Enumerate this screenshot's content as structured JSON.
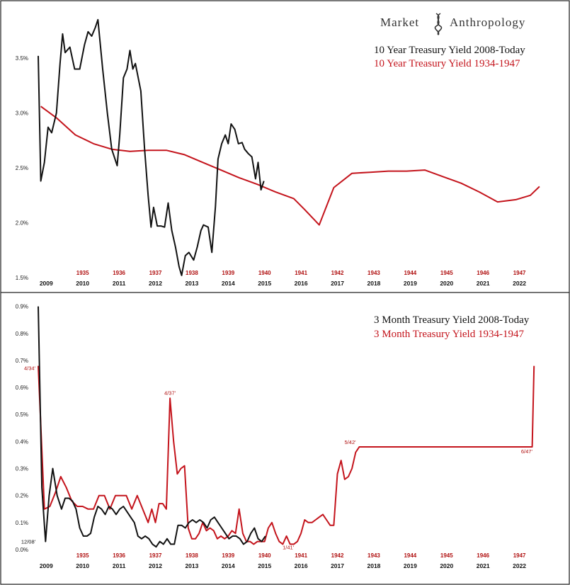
{
  "brand": {
    "word1": "Market",
    "word2": "Anthropology"
  },
  "colors": {
    "black": "#111111",
    "red": "#c4141c",
    "red_label": "#b01010"
  },
  "chart_data": [
    {
      "type": "line",
      "title": "10 Year Treasury Yield",
      "xlabel": "",
      "ylabel": "",
      "ylim": [
        1.5,
        3.9
      ],
      "xlim": [
        2008.8,
        2023.0
      ],
      "yticks": [
        {
          "value": 1.5,
          "label": "1.5%"
        },
        {
          "value": 2.0,
          "label": "2.0%"
        },
        {
          "value": 2.5,
          "label": "2.5%"
        },
        {
          "value": 3.0,
          "label": "3.0%"
        },
        {
          "value": 3.5,
          "label": "3.5%"
        }
      ],
      "x_ticks_black": [
        "2009",
        "2010",
        "2011",
        "2012",
        "2013",
        "2014",
        "2015",
        "2016",
        "2017",
        "2018",
        "2019",
        "2020",
        "2021",
        "2022"
      ],
      "x_ticks_red": [
        "1935",
        "1936",
        "1937",
        "1938",
        "1939",
        "1940",
        "1941",
        "1942",
        "1943",
        "1944",
        "1945",
        "1946",
        "1947"
      ],
      "series": [
        {
          "name": "10 Year Treasury Yield 2008-Today",
          "color": "#111111",
          "x": [
            2008.78,
            2008.85,
            2008.95,
            2009.05,
            2009.15,
            2009.28,
            2009.38,
            2009.45,
            2009.52,
            2009.65,
            2009.78,
            2009.92,
            2010.05,
            2010.15,
            2010.25,
            2010.35,
            2010.42,
            2010.55,
            2010.68,
            2010.8,
            2010.95,
            2011.02,
            2011.12,
            2011.22,
            2011.3,
            2011.38,
            2011.45,
            2011.6,
            2011.7,
            2011.8,
            2011.88,
            2011.95,
            2012.05,
            2012.15,
            2012.25,
            2012.35,
            2012.45,
            2012.55,
            2012.65,
            2012.72,
            2012.82,
            2012.92,
            2013.05,
            2013.15,
            2013.25,
            2013.32,
            2013.45,
            2013.55,
            2013.65,
            2013.72,
            2013.82,
            2013.92,
            2014.0,
            2014.08,
            2014.18,
            2014.28,
            2014.38,
            2014.45,
            2014.55,
            2014.65,
            2014.75,
            2014.82,
            2014.9,
            2014.98
          ],
          "y": [
            3.52,
            2.38,
            2.55,
            2.87,
            2.82,
            3.0,
            3.45,
            3.72,
            3.55,
            3.6,
            3.4,
            3.4,
            3.62,
            3.74,
            3.7,
            3.78,
            3.85,
            3.4,
            3.0,
            2.67,
            2.52,
            2.8,
            3.32,
            3.4,
            3.57,
            3.4,
            3.45,
            3.2,
            2.68,
            2.25,
            1.96,
            2.14,
            1.97,
            1.97,
            1.96,
            2.18,
            1.93,
            1.78,
            1.6,
            1.52,
            1.7,
            1.73,
            1.66,
            1.78,
            1.93,
            1.98,
            1.96,
            1.73,
            2.15,
            2.58,
            2.72,
            2.8,
            2.72,
            2.9,
            2.85,
            2.72,
            2.73,
            2.67,
            2.63,
            2.6,
            2.4,
            2.55,
            2.3,
            2.38
          ]
        },
        {
          "name": "10 Year Treasury Yield 1934-1947",
          "color": "#c4141c",
          "x": [
            2008.85,
            2009.3,
            2009.8,
            2010.3,
            2010.8,
            2011.3,
            2011.8,
            2012.3,
            2012.8,
            2013.3,
            2013.8,
            2014.3,
            2014.8,
            2015.3,
            2015.8,
            2016.1,
            2016.5,
            2016.9,
            2017.4,
            2017.9,
            2018.4,
            2018.9,
            2019.4,
            2019.9,
            2020.4,
            2020.9,
            2021.4,
            2021.9,
            2022.3,
            2022.55
          ],
          "y": [
            3.06,
            2.95,
            2.8,
            2.72,
            2.67,
            2.65,
            2.66,
            2.66,
            2.62,
            2.55,
            2.48,
            2.41,
            2.35,
            2.28,
            2.22,
            2.12,
            1.98,
            2.32,
            2.45,
            2.46,
            2.47,
            2.47,
            2.48,
            2.42,
            2.36,
            2.28,
            2.19,
            2.21,
            2.25,
            2.33
          ]
        }
      ],
      "legend": [
        {
          "label": "10 Year Treasury Yield 2008-Today",
          "color": "#111111"
        },
        {
          "label": "10 Year Treasury Yield 1934-1947",
          "color": "#c4141c"
        }
      ]
    },
    {
      "type": "line",
      "title": "3 Month Treasury Yield",
      "xlabel": "",
      "ylabel": "",
      "ylim": [
        0.0,
        0.92
      ],
      "xlim": [
        2008.8,
        2023.0
      ],
      "yticks": [
        {
          "value": 0.0,
          "label": "0.0%"
        },
        {
          "value": 0.1,
          "label": "0.1%"
        },
        {
          "value": 0.2,
          "label": "0.2%"
        },
        {
          "value": 0.3,
          "label": "0.3%"
        },
        {
          "value": 0.4,
          "label": "0.4%"
        },
        {
          "value": 0.5,
          "label": "0.5%"
        },
        {
          "value": 0.6,
          "label": "0.6%"
        },
        {
          "value": 0.7,
          "label": "0.7%"
        },
        {
          "value": 0.8,
          "label": "0.8%"
        },
        {
          "value": 0.9,
          "label": "0.9%"
        }
      ],
      "x_ticks_black": [
        "2009",
        "2010",
        "2011",
        "2012",
        "2013",
        "2014",
        "2015",
        "2016",
        "2017",
        "2018",
        "2019",
        "2020",
        "2021",
        "2022"
      ],
      "x_ticks_red": [
        "1935",
        "1936",
        "1937",
        "1938",
        "1939",
        "1940",
        "1941",
        "1942",
        "1943",
        "1944",
        "1945",
        "1946",
        "1947"
      ],
      "series": [
        {
          "name": "3 Month Treasury Yield 2008-Today",
          "color": "#111111",
          "x": [
            2008.78,
            2008.88,
            2008.98,
            2009.08,
            2009.18,
            2009.3,
            2009.42,
            2009.52,
            2009.62,
            2009.72,
            2009.82,
            2009.92,
            2010.02,
            2010.12,
            2010.22,
            2010.32,
            2010.42,
            2010.52,
            2010.62,
            2010.72,
            2010.82,
            2010.92,
            2011.02,
            2011.12,
            2011.22,
            2011.32,
            2011.42,
            2011.52,
            2011.62,
            2011.72,
            2011.82,
            2011.92,
            2012.02,
            2012.12,
            2012.22,
            2012.32,
            2012.42,
            2012.52,
            2012.62,
            2012.72,
            2012.82,
            2012.92,
            2013.02,
            2013.12,
            2013.22,
            2013.32,
            2013.42,
            2013.52,
            2013.62,
            2013.72,
            2013.82,
            2013.92,
            2014.02,
            2014.12,
            2014.22,
            2014.32,
            2014.42,
            2014.52,
            2014.62,
            2014.72,
            2014.82,
            2014.92,
            2015.02
          ],
          "y": [
            0.9,
            0.23,
            0.03,
            0.2,
            0.3,
            0.2,
            0.15,
            0.19,
            0.19,
            0.18,
            0.15,
            0.08,
            0.05,
            0.05,
            0.06,
            0.12,
            0.16,
            0.15,
            0.13,
            0.16,
            0.15,
            0.13,
            0.15,
            0.16,
            0.14,
            0.12,
            0.1,
            0.05,
            0.04,
            0.05,
            0.04,
            0.02,
            0.01,
            0.03,
            0.02,
            0.04,
            0.02,
            0.02,
            0.09,
            0.09,
            0.08,
            0.1,
            0.11,
            0.1,
            0.11,
            0.1,
            0.08,
            0.11,
            0.12,
            0.1,
            0.08,
            0.06,
            0.04,
            0.05,
            0.05,
            0.04,
            0.02,
            0.03,
            0.06,
            0.08,
            0.04,
            0.03,
            0.05
          ]
        },
        {
          "name": "3 Month Treasury Yield 1934-1947",
          "color": "#c4141c",
          "x": [
            2008.78,
            2008.95,
            2009.1,
            2009.25,
            2009.4,
            2009.55,
            2009.7,
            2009.85,
            2010.0,
            2010.15,
            2010.3,
            2010.45,
            2010.6,
            2010.75,
            2010.9,
            2011.05,
            2011.2,
            2011.35,
            2011.5,
            2011.65,
            2011.8,
            2011.9,
            2012.0,
            2012.1,
            2012.2,
            2012.3,
            2012.4,
            2012.5,
            2012.6,
            2012.7,
            2012.8,
            2012.9,
            2013.0,
            2013.1,
            2013.2,
            2013.3,
            2013.4,
            2013.5,
            2013.6,
            2013.7,
            2013.8,
            2013.9,
            2014.0,
            2014.1,
            2014.2,
            2014.3,
            2014.4,
            2014.5,
            2014.6,
            2014.7,
            2014.8,
            2014.9,
            2015.0,
            2015.1,
            2015.2,
            2015.3,
            2015.4,
            2015.5,
            2015.6,
            2015.7,
            2015.8,
            2015.9,
            2016.0,
            2016.1,
            2016.2,
            2016.3,
            2016.4,
            2016.5,
            2016.6,
            2016.7,
            2016.8,
            2016.9,
            2017.0,
            2017.1,
            2017.2,
            2017.3,
            2017.4,
            2017.5,
            2017.6,
            2017.8,
            2018.2,
            2019.0,
            2020.0,
            2021.0,
            2022.0,
            2022.1,
            2022.2,
            2022.3,
            2022.35,
            2022.4
          ],
          "y": [
            0.68,
            0.15,
            0.16,
            0.21,
            0.27,
            0.23,
            0.18,
            0.16,
            0.16,
            0.15,
            0.15,
            0.2,
            0.2,
            0.15,
            0.2,
            0.2,
            0.2,
            0.15,
            0.2,
            0.15,
            0.1,
            0.15,
            0.1,
            0.17,
            0.17,
            0.15,
            0.56,
            0.4,
            0.28,
            0.3,
            0.31,
            0.08,
            0.04,
            0.04,
            0.06,
            0.1,
            0.07,
            0.08,
            0.07,
            0.04,
            0.05,
            0.04,
            0.05,
            0.07,
            0.06,
            0.15,
            0.06,
            0.03,
            0.03,
            0.02,
            0.03,
            0.03,
            0.03,
            0.08,
            0.1,
            0.06,
            0.03,
            0.02,
            0.05,
            0.02,
            0.02,
            0.03,
            0.06,
            0.11,
            0.1,
            0.1,
            0.11,
            0.12,
            0.13,
            0.11,
            0.09,
            0.09,
            0.28,
            0.33,
            0.26,
            0.27,
            0.3,
            0.36,
            0.38,
            0.38,
            0.38,
            0.38,
            0.38,
            0.38,
            0.38,
            0.38,
            0.38,
            0.38,
            0.38,
            0.68
          ]
        }
      ],
      "legend": [
        {
          "label": "3 Month Treasury Yield 2008-Today",
          "color": "#111111"
        },
        {
          "label": "3 Month Treasury Yield 1934-1947",
          "color": "#c4141c"
        }
      ],
      "annotations": [
        {
          "text": "4/34'",
          "x": 2008.78,
          "y": 0.68,
          "color": "#b01010"
        },
        {
          "text": "12/08'",
          "x": 2008.78,
          "y": 0.02,
          "color": "#111111"
        },
        {
          "text": "4/37'",
          "x": 2012.4,
          "y": 0.56,
          "color": "#b01010"
        },
        {
          "text": "1/41'",
          "x": 2015.65,
          "y": 0.02,
          "color": "#b01010"
        },
        {
          "text": "5/42'",
          "x": 2017.35,
          "y": 0.38,
          "color": "#b01010"
        },
        {
          "text": "6/47'",
          "x": 2022.2,
          "y": 0.38,
          "color": "#b01010"
        }
      ]
    }
  ]
}
